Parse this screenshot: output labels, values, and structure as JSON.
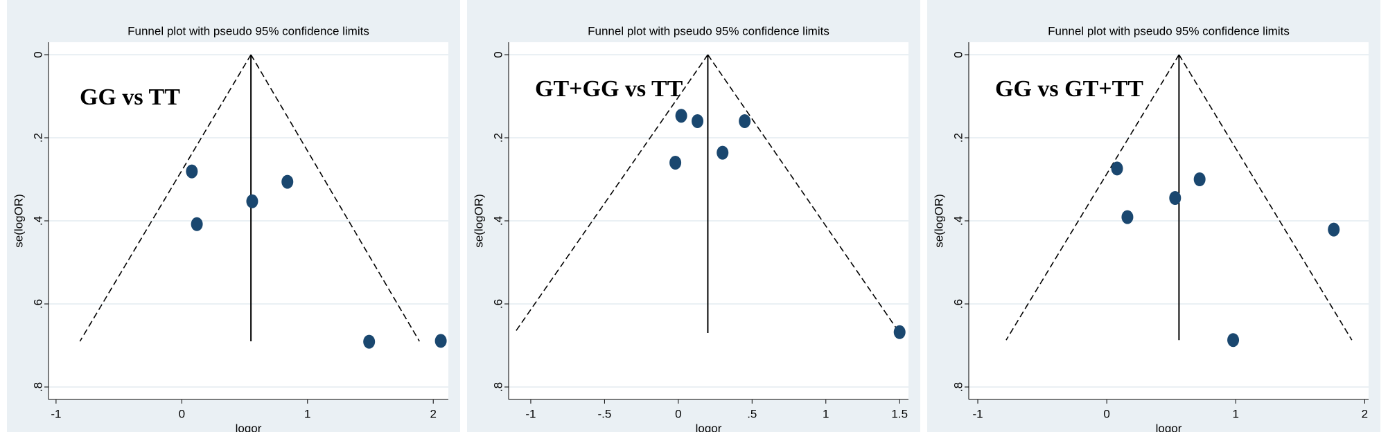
{
  "chart_data": [
    {
      "type": "scatter",
      "title": "Funnel plot with pseudo 95% confidence limits",
      "annotation": "GG vs TT",
      "x_label": "logor",
      "y_label": "se(logOR)",
      "color": "#1a476f",
      "grid": true,
      "y_reversed": true,
      "xlim": [
        -1.06,
        2.12
      ],
      "ylim": [
        -0.03,
        0.83
      ],
      "xticks": [
        -1,
        0,
        1,
        2
      ],
      "yticks": [
        0,
        {
          "value": 0.2,
          "label": ".2"
        },
        {
          "value": 0.4,
          "label": ".4"
        },
        {
          "value": 0.6,
          "label": ".6"
        },
        {
          "value": 0.8,
          "label": ".8"
        }
      ],
      "points": {
        "x": [
          0.08,
          0.12,
          0.56,
          0.84,
          1.49,
          2.06
        ],
        "y": [
          0.281,
          0.408,
          0.353,
          0.306,
          0.691,
          0.689
        ]
      },
      "reference_line": {
        "x": 0.55,
        "y": [
          0,
          0.69
        ]
      },
      "ci_lower": {
        "x": [
          0.55,
          -0.81
        ],
        "y": [
          0,
          0.69
        ]
      },
      "ci_upper": {
        "x": [
          0.55,
          1.89
        ],
        "y": [
          0,
          0.69
        ]
      }
    },
    {
      "type": "scatter",
      "title": "Funnel plot with pseudo 95% confidence limits",
      "annotation": "GT+GG vs TT",
      "x_label": "logor",
      "y_label": "se(logOR)",
      "color": "#1a476f",
      "grid": true,
      "y_reversed": true,
      "xlim": [
        -1.15,
        1.56
      ],
      "ylim": [
        -0.03,
        0.83
      ],
      "xticks": [
        -1,
        {
          "value": -0.5,
          "label": "-.5"
        },
        0,
        {
          "value": 0.5,
          "label": ".5"
        },
        1,
        1.5
      ],
      "yticks": [
        0,
        {
          "value": 0.2,
          "label": ".2"
        },
        {
          "value": 0.4,
          "label": ".4"
        },
        {
          "value": 0.6,
          "label": ".6"
        },
        {
          "value": 0.8,
          "label": ".8"
        }
      ],
      "points": {
        "x": [
          0.02,
          0.13,
          -0.02,
          0.3,
          0.45,
          1.5
        ],
        "y": [
          0.147,
          0.16,
          0.26,
          0.236,
          0.16,
          0.668
        ]
      },
      "reference_line": {
        "x": 0.2,
        "y": [
          0,
          0.67
        ]
      },
      "ci_lower": {
        "x": [
          0.2,
          -1.11
        ],
        "y": [
          0,
          0.67
        ]
      },
      "ci_upper": {
        "x": [
          0.2,
          1.5
        ],
        "y": [
          0,
          0.67
        ]
      }
    },
    {
      "type": "scatter",
      "title": "Funnel plot with pseudo 95% confidence limits",
      "annotation": "GG vs GT+TT",
      "x_label": "logor",
      "y_label": "se(logOR)",
      "color": "#1a476f",
      "grid": true,
      "y_reversed": true,
      "xlim": [
        -1.07,
        2.03
      ],
      "ylim": [
        -0.03,
        0.83
      ],
      "xticks": [
        -1,
        0,
        1,
        2
      ],
      "yticks": [
        0,
        {
          "value": 0.2,
          "label": ".2"
        },
        {
          "value": 0.4,
          "label": ".4"
        },
        {
          "value": 0.6,
          "label": ".6"
        },
        {
          "value": 0.8,
          "label": ".8"
        }
      ],
      "points": {
        "x": [
          0.08,
          0.16,
          0.53,
          0.72,
          1.76,
          0.98
        ],
        "y": [
          0.274,
          0.391,
          0.345,
          0.3,
          0.421,
          0.687
        ]
      },
      "reference_line": {
        "x": 0.56,
        "y": [
          0,
          0.687
        ]
      },
      "ci_lower": {
        "x": [
          0.56,
          -0.78
        ],
        "y": [
          0,
          0.687
        ]
      },
      "ci_upper": {
        "x": [
          0.56,
          1.9
        ],
        "y": [
          0,
          0.687
        ]
      }
    }
  ]
}
